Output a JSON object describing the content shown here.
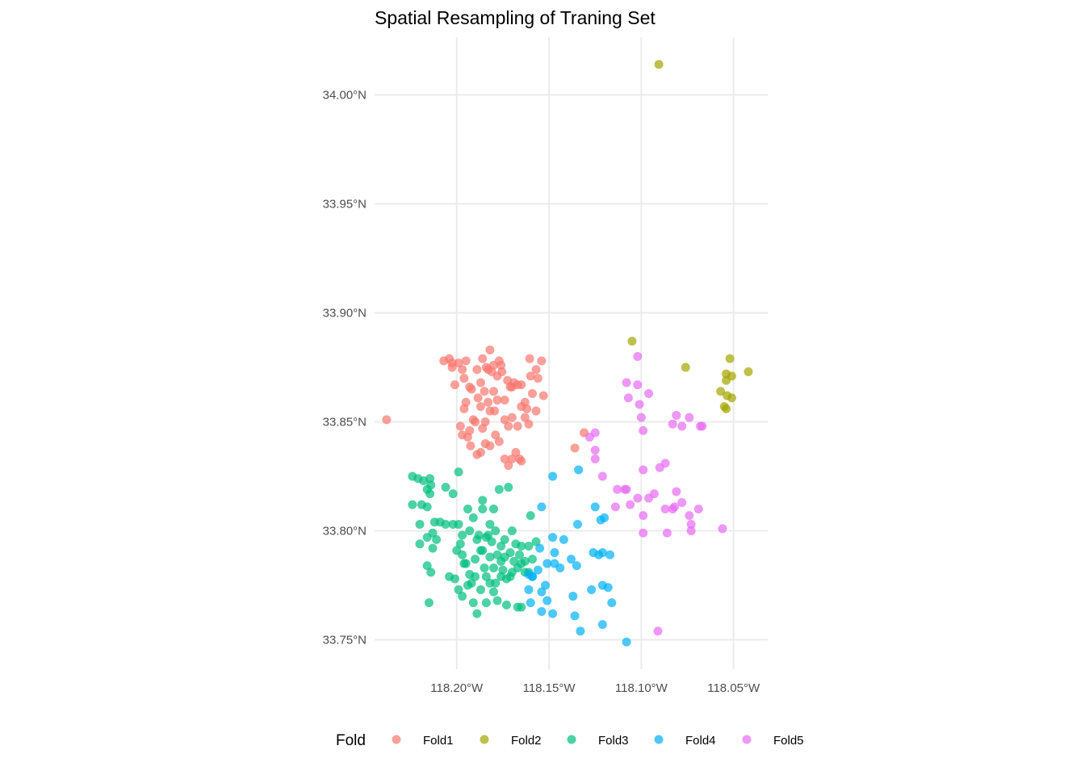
{
  "chart_data": {
    "type": "scatter",
    "title": "Spatial Resampling of Traning Set",
    "xlabel": "",
    "ylabel": "",
    "xlim": [
      -118.2445,
      -118.0315
    ],
    "ylim": [
      33.7365,
      34.0265
    ],
    "x_ticks": [
      -118.2,
      -118.15,
      -118.1,
      -118.05
    ],
    "x_tick_labels": [
      "118.20°W",
      "118.15°W",
      "118.10°W",
      "118.05°W"
    ],
    "y_ticks": [
      33.75,
      33.8,
      33.85,
      33.9,
      33.95,
      34.0
    ],
    "y_tick_labels": [
      "33.75°N",
      "33.80°N",
      "33.85°N",
      "33.90°N",
      "33.95°N",
      "34.00°N"
    ],
    "grid": true,
    "legend": {
      "title": "Fold",
      "placement": "bottom"
    },
    "series": [
      {
        "name": "Fold1",
        "color": "#F8766D",
        "points": [
          [
            -118.238,
            33.851
          ],
          [
            -118.207,
            33.878
          ],
          [
            -118.204,
            33.879
          ],
          [
            -118.2025,
            33.877
          ],
          [
            -118.2025,
            33.875
          ],
          [
            -118.201,
            33.867
          ],
          [
            -118.199,
            33.877
          ],
          [
            -118.197,
            33.874
          ],
          [
            -118.196,
            33.87
          ],
          [
            -118.195,
            33.878
          ],
          [
            -118.193,
            33.866
          ],
          [
            -118.192,
            33.865
          ],
          [
            -118.189,
            33.874
          ],
          [
            -118.1885,
            33.861
          ],
          [
            -118.187,
            33.868
          ],
          [
            -118.186,
            33.879
          ],
          [
            -118.185,
            33.864
          ],
          [
            -118.184,
            33.875
          ],
          [
            -118.183,
            33.874
          ],
          [
            -118.182,
            33.883
          ],
          [
            -118.181,
            33.873
          ],
          [
            -118.18,
            33.876
          ],
          [
            -118.178,
            33.871
          ],
          [
            -118.177,
            33.878
          ],
          [
            -118.176,
            33.876
          ],
          [
            -118.1755,
            33.873
          ],
          [
            -118.174,
            33.86
          ],
          [
            -118.1725,
            33.869
          ],
          [
            -118.171,
            33.866
          ],
          [
            -118.17,
            33.866
          ],
          [
            -118.169,
            33.868
          ],
          [
            -118.167,
            33.867
          ],
          [
            -118.165,
            33.867
          ],
          [
            -118.163,
            33.859
          ],
          [
            -118.162,
            33.856
          ],
          [
            -118.1605,
            33.879
          ],
          [
            -118.16,
            33.871
          ],
          [
            -118.159,
            33.863
          ],
          [
            -118.157,
            33.874
          ],
          [
            -118.156,
            33.87
          ],
          [
            -118.154,
            33.878
          ],
          [
            -118.153,
            33.862
          ],
          [
            -118.198,
            33.848
          ],
          [
            -118.196,
            33.856
          ],
          [
            -118.195,
            33.859
          ],
          [
            -118.193,
            33.846
          ],
          [
            -118.191,
            33.851
          ],
          [
            -118.19,
            33.85
          ],
          [
            -118.187,
            33.857
          ],
          [
            -118.186,
            33.847
          ],
          [
            -118.1845,
            33.85
          ],
          [
            -118.183,
            33.859
          ],
          [
            -118.182,
            33.855
          ],
          [
            -118.18,
            33.864
          ],
          [
            -118.1795,
            33.855
          ],
          [
            -118.178,
            33.86
          ],
          [
            -118.174,
            33.851
          ],
          [
            -118.172,
            33.848
          ],
          [
            -118.17,
            33.852
          ],
          [
            -118.167,
            33.848
          ],
          [
            -118.165,
            33.857
          ],
          [
            -118.163,
            33.852
          ],
          [
            -118.161,
            33.849
          ],
          [
            -118.157,
            33.855
          ],
          [
            -118.197,
            33.844
          ],
          [
            -118.194,
            33.843
          ],
          [
            -118.1925,
            33.839
          ],
          [
            -118.189,
            33.835
          ],
          [
            -118.187,
            33.836
          ],
          [
            -118.1845,
            33.84
          ],
          [
            -118.182,
            33.839
          ],
          [
            -118.179,
            33.844
          ],
          [
            -118.177,
            33.841
          ],
          [
            -118.174,
            33.833
          ],
          [
            -118.172,
            33.83
          ],
          [
            -118.17,
            33.833
          ],
          [
            -118.168,
            33.836
          ],
          [
            -118.166,
            33.833
          ],
          [
            -118.165,
            33.832
          ],
          [
            -118.136,
            33.838
          ],
          [
            -118.131,
            33.845
          ]
        ]
      },
      {
        "name": "Fold2",
        "color": "#A3A500",
        "points": [
          [
            -118.0905,
            34.014
          ],
          [
            -118.105,
            33.887
          ],
          [
            -118.076,
            33.875
          ],
          [
            -118.052,
            33.879
          ],
          [
            -118.042,
            33.873
          ],
          [
            -118.054,
            33.872
          ],
          [
            -118.051,
            33.871
          ],
          [
            -118.054,
            33.869
          ],
          [
            -118.057,
            33.864
          ],
          [
            -118.0535,
            33.862
          ],
          [
            -118.051,
            33.861
          ],
          [
            -118.055,
            33.857
          ],
          [
            -118.054,
            33.856
          ]
        ]
      },
      {
        "name": "Fold3",
        "color": "#00BF7D",
        "points": [
          [
            -118.224,
            33.825
          ],
          [
            -118.221,
            33.824
          ],
          [
            -118.218,
            33.823
          ],
          [
            -118.2145,
            33.824
          ],
          [
            -118.214,
            33.821
          ],
          [
            -118.216,
            33.819
          ],
          [
            -118.2145,
            33.817
          ],
          [
            -118.199,
            33.827
          ],
          [
            -118.206,
            33.82
          ],
          [
            -118.202,
            33.817
          ],
          [
            -118.224,
            33.812
          ],
          [
            -118.219,
            33.812
          ],
          [
            -118.216,
            33.811
          ],
          [
            -118.212,
            33.804
          ],
          [
            -118.209,
            33.804
          ],
          [
            -118.206,
            33.803
          ],
          [
            -118.22,
            33.803
          ],
          [
            -118.216,
            33.797
          ],
          [
            -118.213,
            33.799
          ],
          [
            -118.211,
            33.796
          ],
          [
            -118.22,
            33.794
          ],
          [
            -118.213,
            33.792
          ],
          [
            -118.216,
            33.784
          ],
          [
            -118.214,
            33.781
          ],
          [
            -118.215,
            33.767
          ],
          [
            -118.202,
            33.803
          ],
          [
            -118.199,
            33.803
          ],
          [
            -118.197,
            33.798
          ],
          [
            -118.193,
            33.8
          ],
          [
            -118.188,
            33.798
          ],
          [
            -118.186,
            33.81
          ],
          [
            -118.184,
            33.797
          ],
          [
            -118.182,
            33.803
          ],
          [
            -118.179,
            33.8
          ],
          [
            -118.177,
            33.819
          ],
          [
            -118.172,
            33.82
          ],
          [
            -118.174,
            33.796
          ],
          [
            -118.17,
            33.8
          ],
          [
            -118.168,
            33.794
          ],
          [
            -118.165,
            33.793
          ],
          [
            -118.161,
            33.793
          ],
          [
            -118.16,
            33.807
          ],
          [
            -118.157,
            33.795
          ],
          [
            -118.2,
            33.791
          ],
          [
            -118.197,
            33.789
          ],
          [
            -118.195,
            33.785
          ],
          [
            -118.193,
            33.78
          ],
          [
            -118.19,
            33.787
          ],
          [
            -118.187,
            33.791
          ],
          [
            -118.185,
            33.783
          ],
          [
            -118.182,
            33.788
          ],
          [
            -118.18,
            33.783
          ],
          [
            -118.178,
            33.789
          ],
          [
            -118.176,
            33.786
          ],
          [
            -118.174,
            33.788
          ],
          [
            -118.171,
            33.779
          ],
          [
            -118.169,
            33.786
          ],
          [
            -118.167,
            33.783
          ],
          [
            -118.165,
            33.785
          ],
          [
            -118.163,
            33.781
          ],
          [
            -118.161,
            33.781
          ],
          [
            -118.204,
            33.779
          ],
          [
            -118.201,
            33.778
          ],
          [
            -118.199,
            33.773
          ],
          [
            -118.197,
            33.77
          ],
          [
            -118.194,
            33.775
          ],
          [
            -118.192,
            33.776
          ],
          [
            -118.19,
            33.779
          ],
          [
            -118.187,
            33.773
          ],
          [
            -118.184,
            33.767
          ],
          [
            -118.182,
            33.776
          ],
          [
            -118.18,
            33.772
          ],
          [
            -118.178,
            33.768
          ],
          [
            -118.176,
            33.779
          ],
          [
            -118.173,
            33.766
          ],
          [
            -118.17,
            33.781
          ],
          [
            -118.167,
            33.765
          ],
          [
            -118.165,
            33.765
          ],
          [
            -118.191,
            33.767
          ],
          [
            -118.189,
            33.762
          ],
          [
            -118.194,
            33.81
          ],
          [
            -118.191,
            33.806
          ],
          [
            -118.186,
            33.814
          ],
          [
            -118.183,
            33.798
          ],
          [
            -118.181,
            33.795
          ],
          [
            -118.18,
            33.81
          ],
          [
            -118.198,
            33.794
          ],
          [
            -118.189,
            33.796
          ],
          [
            -118.176,
            33.793
          ],
          [
            -118.171,
            33.79
          ],
          [
            -118.166,
            33.789
          ],
          [
            -118.163,
            33.786
          ],
          [
            -118.186,
            33.791
          ],
          [
            -118.179,
            33.776
          ],
          [
            -118.173,
            33.778
          ],
          [
            -118.159,
            33.787
          ],
          [
            -118.196,
            33.785
          ],
          [
            -118.184,
            33.779
          ],
          [
            -118.175,
            33.782
          ]
        ]
      },
      {
        "name": "Fold4",
        "color": "#00B0F6",
        "points": [
          [
            -118.148,
            33.825
          ],
          [
            -118.134,
            33.828
          ],
          [
            -118.154,
            33.811
          ],
          [
            -118.125,
            33.811
          ],
          [
            -118.122,
            33.805
          ],
          [
            -118.12,
            33.806
          ],
          [
            -118.1345,
            33.803
          ],
          [
            -118.148,
            33.797
          ],
          [
            -118.142,
            33.796
          ],
          [
            -118.155,
            33.792
          ],
          [
            -118.147,
            33.79
          ],
          [
            -118.151,
            33.785
          ],
          [
            -118.147,
            33.785
          ],
          [
            -118.144,
            33.783
          ],
          [
            -118.138,
            33.787
          ],
          [
            -118.135,
            33.784
          ],
          [
            -118.126,
            33.79
          ],
          [
            -118.123,
            33.789
          ],
          [
            -118.121,
            33.79
          ],
          [
            -118.117,
            33.789
          ],
          [
            -118.156,
            33.782
          ],
          [
            -118.159,
            33.779
          ],
          [
            -118.161,
            33.78
          ],
          [
            -118.159,
            33.779
          ],
          [
            -118.161,
            33.773
          ],
          [
            -118.154,
            33.772
          ],
          [
            -118.152,
            33.775
          ],
          [
            -118.151,
            33.768
          ],
          [
            -118.137,
            33.77
          ],
          [
            -118.127,
            33.773
          ],
          [
            -118.121,
            33.775
          ],
          [
            -118.118,
            33.774
          ],
          [
            -118.116,
            33.767
          ],
          [
            -118.16,
            33.767
          ],
          [
            -118.154,
            33.763
          ],
          [
            -118.148,
            33.762
          ],
          [
            -118.136,
            33.761
          ],
          [
            -118.121,
            33.757
          ],
          [
            -118.133,
            33.754
          ],
          [
            -118.108,
            33.749
          ]
        ]
      },
      {
        "name": "Fold5",
        "color": "#E76BF3",
        "points": [
          [
            -118.102,
            33.88
          ],
          [
            -118.108,
            33.868
          ],
          [
            -118.102,
            33.867
          ],
          [
            -118.096,
            33.863
          ],
          [
            -118.107,
            33.861
          ],
          [
            -118.101,
            33.858
          ],
          [
            -118.1,
            33.852
          ],
          [
            -118.099,
            33.846
          ],
          [
            -118.081,
            33.853
          ],
          [
            -118.074,
            33.852
          ],
          [
            -118.083,
            33.849
          ],
          [
            -118.078,
            33.848
          ],
          [
            -118.068,
            33.848
          ],
          [
            -118.067,
            33.848
          ],
          [
            -118.128,
            33.843
          ],
          [
            -118.125,
            33.845
          ],
          [
            -118.125,
            33.837
          ],
          [
            -118.125,
            33.833
          ],
          [
            -118.121,
            33.825
          ],
          [
            -118.087,
            33.831
          ],
          [
            -118.09,
            33.829
          ],
          [
            -118.099,
            33.828
          ],
          [
            -118.113,
            33.819
          ],
          [
            -118.109,
            33.819
          ],
          [
            -118.108,
            33.819
          ],
          [
            -118.081,
            33.818
          ],
          [
            -118.093,
            33.817
          ],
          [
            -118.096,
            33.815
          ],
          [
            -118.102,
            33.815
          ],
          [
            -118.106,
            33.812
          ],
          [
            -118.114,
            33.811
          ],
          [
            -118.078,
            33.813
          ],
          [
            -118.082,
            33.811
          ],
          [
            -118.087,
            33.81
          ],
          [
            -118.083,
            33.81
          ],
          [
            -118.069,
            33.81
          ],
          [
            -118.099,
            33.807
          ],
          [
            -118.074,
            33.807
          ],
          [
            -118.073,
            33.803
          ],
          [
            -118.056,
            33.801
          ],
          [
            -118.073,
            33.8
          ],
          [
            -118.086,
            33.799
          ],
          [
            -118.099,
            33.799
          ],
          [
            -118.091,
            33.754
          ]
        ]
      }
    ]
  }
}
